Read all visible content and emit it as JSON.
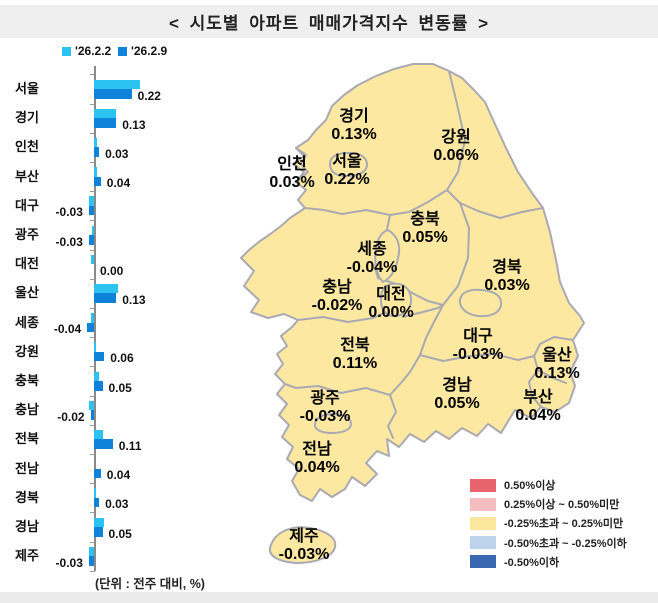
{
  "title": "<  시도별  아파트  매매가격지수  변동률  >",
  "chart": {
    "note": "(단위 : 전주 대비, %)"
  },
  "chart_data": {
    "type": "bar",
    "orientation": "horizontal",
    "unit": "%",
    "title": "시도별 아파트 매매가격지수 변동률",
    "categories": [
      "서울",
      "경기",
      "인천",
      "부산",
      "대구",
      "광주",
      "대전",
      "울산",
      "세종",
      "강원",
      "충북",
      "충남",
      "전북",
      "전남",
      "경북",
      "경남",
      "제주"
    ],
    "series": [
      {
        "name": "'26.2.2",
        "color": "#2CC3F1",
        "values": [
          0.27,
          0.13,
          0.02,
          0.02,
          -0.03,
          -0.01,
          -0.02,
          0.14,
          -0.02,
          0.01,
          0.03,
          -0.03,
          0.05,
          0.0,
          0.01,
          0.06,
          -0.03
        ]
      },
      {
        "name": "'26.2.9",
        "color": "#0F82D9",
        "values": [
          0.22,
          0.13,
          0.03,
          0.04,
          -0.03,
          -0.03,
          0.0,
          0.13,
          -0.04,
          0.06,
          0.05,
          -0.02,
          0.11,
          0.04,
          0.03,
          0.05,
          -0.03
        ]
      }
    ],
    "labeled_series": "'26.2.9",
    "value_labels": [
      "0.22",
      "0.13",
      "0.03",
      "0.04",
      "-0.03",
      "-0.03",
      "0.00",
      "0.13",
      "-0.04",
      "0.06",
      "0.05",
      "-0.02",
      "0.11",
      "0.04",
      "0.03",
      "0.05",
      "-0.03"
    ],
    "legend_position": "top",
    "grid": false
  },
  "map": {
    "fill_color": "#FDE8A2",
    "border_color": "#A9A9B2",
    "regions": [
      {
        "id": "gyeonggi",
        "name": "경기",
        "value": "0.13%"
      },
      {
        "id": "gangwon",
        "name": "강원",
        "value": "0.06%"
      },
      {
        "id": "incheon",
        "name": "인천",
        "value": "0.03%"
      },
      {
        "id": "seoul",
        "name": "서울",
        "value": "0.22%"
      },
      {
        "id": "chungbuk",
        "name": "충북",
        "value": "0.05%"
      },
      {
        "id": "sejong",
        "name": "세종",
        "value": "-0.04%"
      },
      {
        "id": "gyeongbuk",
        "name": "경북",
        "value": "0.03%"
      },
      {
        "id": "chungnam",
        "name": "충남",
        "value": "-0.02%"
      },
      {
        "id": "daejeon",
        "name": "대전",
        "value": "0.00%"
      },
      {
        "id": "jeonbuk",
        "name": "전북",
        "value": "0.11%"
      },
      {
        "id": "daegu",
        "name": "대구",
        "value": "-0.03%"
      },
      {
        "id": "ulsan",
        "name": "울산",
        "value": "0.13%"
      },
      {
        "id": "gyeongnam",
        "name": "경남",
        "value": "0.05%"
      },
      {
        "id": "gwangju",
        "name": "광주",
        "value": "-0.03%"
      },
      {
        "id": "busan",
        "name": "부산",
        "value": "0.04%"
      },
      {
        "id": "jeonnam",
        "name": "전남",
        "value": "0.04%"
      },
      {
        "id": "jeju",
        "name": "제주",
        "value": "-0.03%"
      }
    ],
    "legend": [
      {
        "color": "#E8646C",
        "label": "0.50%이상"
      },
      {
        "color": "#F5BDC0",
        "label": "0.25%이상 ~ 0.50%미만"
      },
      {
        "color": "#FCE69E",
        "label": "-0.25%초과 ~ 0.25%미만"
      },
      {
        "color": "#BDD2EC",
        "label": "-0.50%초과 ~ -0.25%이하"
      },
      {
        "color": "#3A68B0",
        "label": "-0.50%이하"
      }
    ]
  }
}
